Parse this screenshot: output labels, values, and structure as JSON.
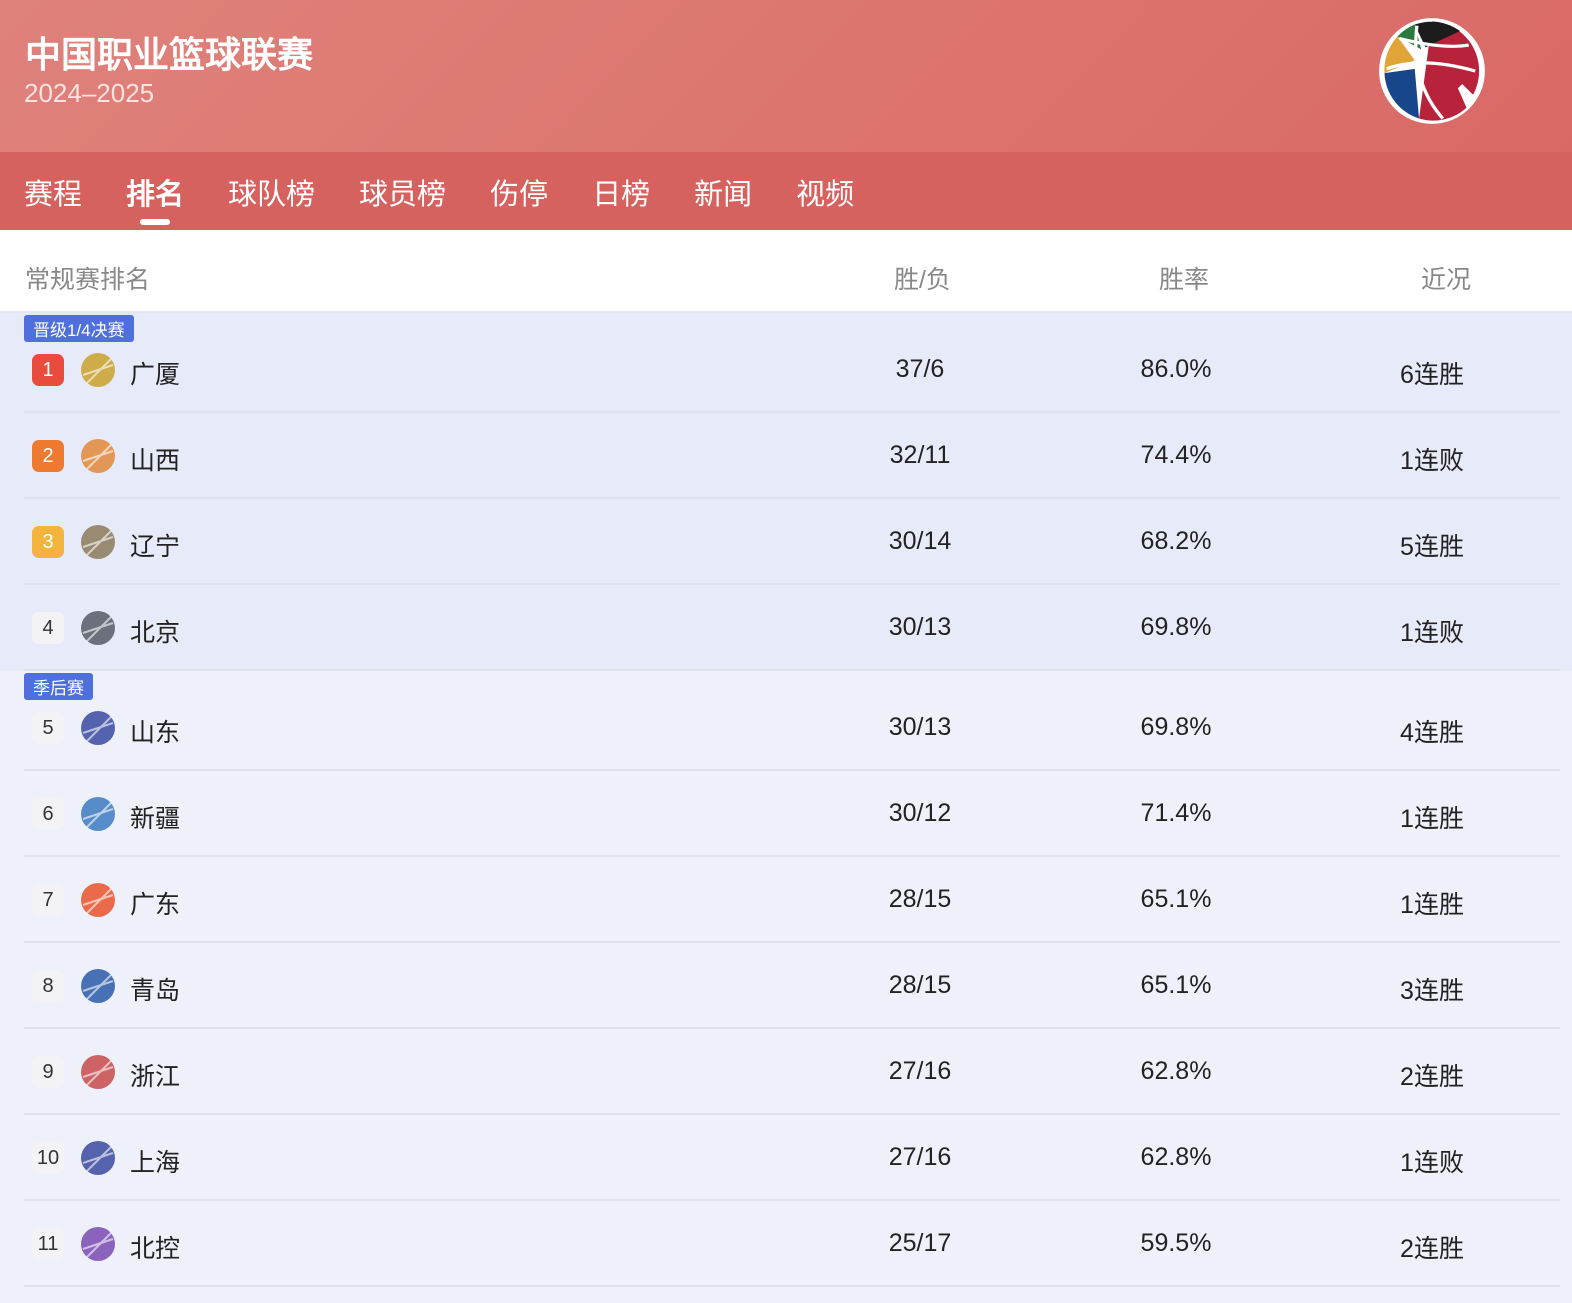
{
  "header": {
    "title": "中国职业篮球联赛",
    "season": "2024–2025"
  },
  "nav": {
    "tabs": [
      "赛程",
      "排名",
      "球队榜",
      "球员榜",
      "伤停",
      "日榜",
      "新闻",
      "视频"
    ],
    "active": "排名"
  },
  "table": {
    "title": "常规赛排名",
    "col_wl": "胜/负",
    "col_pct": "胜率",
    "col_recent": "近况"
  },
  "groups": [
    {
      "label": "晋级1/4决赛",
      "rows": [
        {
          "rank": "1",
          "team": "广厦",
          "wl": "37/6",
          "pct": "86.0%",
          "recent": "6连胜"
        },
        {
          "rank": "2",
          "team": "山西",
          "wl": "32/11",
          "pct": "74.4%",
          "recent": "1连败"
        },
        {
          "rank": "3",
          "team": "辽宁",
          "wl": "30/14",
          "pct": "68.2%",
          "recent": "5连胜"
        },
        {
          "rank": "4",
          "team": "北京",
          "wl": "30/13",
          "pct": "69.8%",
          "recent": "1连败"
        }
      ]
    },
    {
      "label": "季后赛",
      "rows": [
        {
          "rank": "5",
          "team": "山东",
          "wl": "30/13",
          "pct": "69.8%",
          "recent": "4连胜"
        },
        {
          "rank": "6",
          "team": "新疆",
          "wl": "30/12",
          "pct": "71.4%",
          "recent": "1连胜"
        },
        {
          "rank": "7",
          "team": "广东",
          "wl": "28/15",
          "pct": "65.1%",
          "recent": "1连胜"
        },
        {
          "rank": "8",
          "team": "青岛",
          "wl": "28/15",
          "pct": "65.1%",
          "recent": "3连胜"
        },
        {
          "rank": "9",
          "team": "浙江",
          "wl": "27/16",
          "pct": "62.8%",
          "recent": "2连胜"
        },
        {
          "rank": "10",
          "team": "上海",
          "wl": "27/16",
          "pct": "62.8%",
          "recent": "1连败"
        },
        {
          "rank": "11",
          "team": "北控",
          "wl": "25/17",
          "pct": "59.5%",
          "recent": "2连胜"
        }
      ]
    }
  ],
  "colors": {
    "header": "#dd7b75",
    "nav": "#d6625f",
    "badge": "#4f6fdc",
    "rank1": "#e84c3d",
    "rank2": "#f07930",
    "rank3": "#f2b43c"
  },
  "team_logo_colors": [
    "#c9a12a",
    "#e0883a",
    "#8a7a5a",
    "#555a66",
    "#3a4aa0",
    "#3a7ac0",
    "#e8542a",
    "#2a5aa8",
    "#c84a4a",
    "#3a4aa0",
    "#7a4ab0"
  ]
}
